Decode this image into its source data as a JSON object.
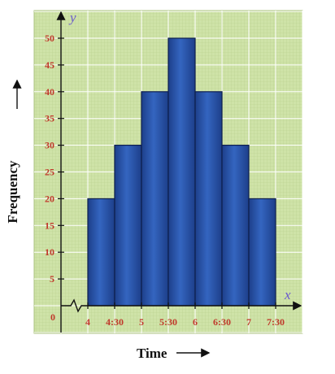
{
  "chart_data": {
    "type": "bar",
    "subtype": "histogram",
    "xlabel": "Time",
    "ylabel": "Frequency",
    "x_axis_letter": "x",
    "y_axis_letter": "y",
    "origin_label": "0",
    "x_ticks": [
      "4",
      "4:30",
      "5",
      "5:30",
      "6",
      "6:30",
      "7",
      "7:30"
    ],
    "y_ticks": [
      "5",
      "10",
      "15",
      "20",
      "25",
      "30",
      "35",
      "40",
      "45",
      "50"
    ],
    "categories": [
      "4-4:30",
      "4:30-5",
      "5-5:30",
      "5:30-6",
      "6-6:30",
      "6:30-7",
      "7-7:30"
    ],
    "values": [
      20,
      30,
      40,
      50,
      40,
      30,
      20
    ],
    "ylim": [
      0,
      50
    ],
    "x_axis_break": true,
    "grid": true,
    "colors": {
      "background": "#cfe3a8",
      "bar": "#2b55a8",
      "tick_text": "#c0392b",
      "axis_letter": "#6a5acd"
    }
  }
}
